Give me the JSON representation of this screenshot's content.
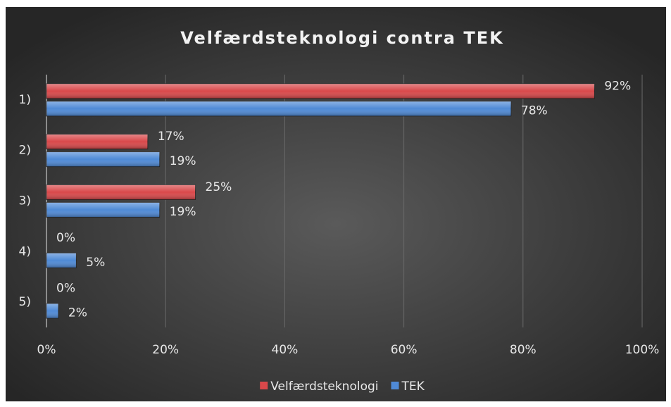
{
  "chart_data": {
    "type": "bar",
    "orientation": "horizontal",
    "title": "Velfærdsteknologi contra TEK",
    "categories": [
      "1)",
      "2)",
      "3)",
      "4)",
      "5)"
    ],
    "series": [
      {
        "name": "Velfærdsteknologi",
        "color": "#d9484a",
        "values": [
          92,
          17,
          25,
          0,
          0
        ],
        "value_labels": [
          "92%",
          "17%",
          "25%",
          "0%",
          "0%"
        ]
      },
      {
        "name": "TEK",
        "color": "#4f8ad6",
        "values": [
          78,
          19,
          19,
          5,
          2
        ],
        "value_labels": [
          "78%",
          "19%",
          "19%",
          "5%",
          "2%"
        ]
      }
    ],
    "xlim": [
      0,
      100
    ],
    "xticks": [
      {
        "value": 0,
        "label": "0%"
      },
      {
        "value": 20,
        "label": "20%"
      },
      {
        "value": 40,
        "label": "40%"
      },
      {
        "value": 60,
        "label": "60%"
      },
      {
        "value": 80,
        "label": "80%"
      },
      {
        "value": 100,
        "label": "100%"
      }
    ],
    "grid": true,
    "legend": "bottom"
  }
}
